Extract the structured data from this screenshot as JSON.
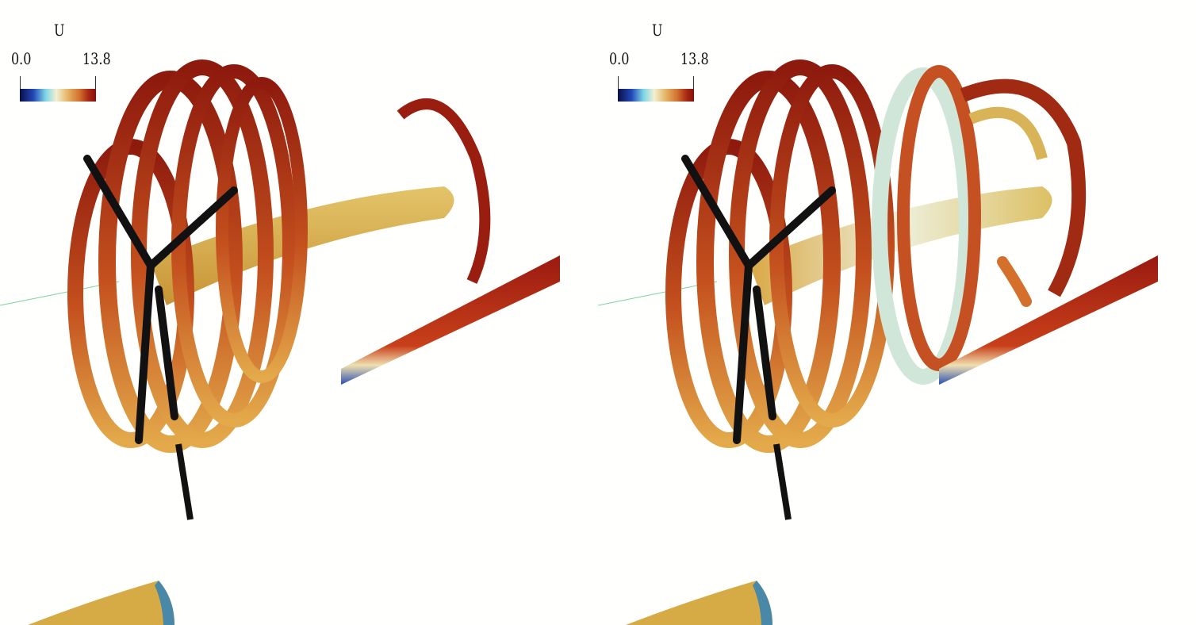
{
  "viewports": [
    {
      "id": "left",
      "legend": {
        "title": "U",
        "min_label": "0.0",
        "max_label": "13.8"
      }
    },
    {
      "id": "right",
      "legend": {
        "title": "U",
        "min_label": "0.0",
        "max_label": "13.8"
      }
    }
  ],
  "colors": {
    "background": "#ffffff",
    "vortex_dark": "#8e1a0e",
    "vortex_mid": "#c4501e",
    "vortex_light": "#e3a94a",
    "wake_core": "#d9b24e",
    "blade": "#111111",
    "cool_region": "#cfe6d8"
  }
}
